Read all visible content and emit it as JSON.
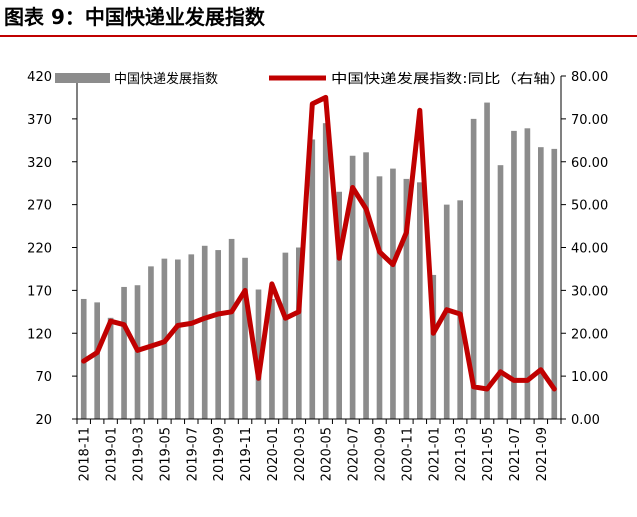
{
  "title": "图表 9：中国快递业发展指数",
  "colors": {
    "bar": "#8c8c8c",
    "line": "#c00000",
    "title_rule": "#c00000",
    "axis": "#000000"
  },
  "chart_data": {
    "type": "bar",
    "categories": [
      "2018-11",
      "2018-12",
      "2019-01",
      "2019-02",
      "2019-03",
      "2019-04",
      "2019-05",
      "2019-06",
      "2019-07",
      "2019-08",
      "2019-09",
      "2019-10",
      "2019-11",
      "2019-12",
      "2020-01",
      "2020-02",
      "2020-03",
      "2020-04",
      "2020-05",
      "2020-06",
      "2020-07",
      "2020-08",
      "2020-09",
      "2020-10",
      "2020-11",
      "2020-12",
      "2021-01",
      "2021-02",
      "2021-03",
      "2021-04",
      "2021-05",
      "2021-06",
      "2021-07",
      "2021-08",
      "2021-09",
      "2021-10"
    ],
    "tick_labels": [
      "2018-11",
      "2019-01",
      "2019-03",
      "2019-05",
      "2019-07",
      "2019-09",
      "2019-11",
      "2020-01",
      "2020-03",
      "2020-05",
      "2020-07",
      "2020-09",
      "2020-11",
      "2021-01",
      "2021-03",
      "2021-05",
      "2021-07",
      "2021-09"
    ],
    "series": [
      {
        "name": "中国快递发展指数",
        "type": "bar",
        "axis": "left",
        "values": [
          160,
          156,
          138,
          174,
          176,
          198,
          207,
          206,
          212,
          222,
          217,
          230,
          208,
          171,
          160,
          214,
          220,
          346,
          365,
          285,
          327,
          331,
          303,
          312,
          300,
          296,
          188,
          270,
          275,
          370,
          389,
          316,
          356,
          359,
          337,
          335
        ]
      },
      {
        "name": "中国快递发展指数:同比（右轴）",
        "type": "line",
        "axis": "right",
        "values": [
          13.5,
          15.5,
          22.8,
          22.0,
          16.0,
          17.0,
          18.0,
          21.8,
          22.3,
          23.5,
          24.5,
          25.0,
          30.0,
          9.5,
          31.5,
          23.5,
          25.0,
          73.5,
          75.0,
          37.5,
          54.0,
          49.0,
          39.0,
          36.0,
          43.5,
          72.0,
          20.0,
          25.5,
          24.5,
          7.5,
          7.0,
          11.0,
          9.0,
          9.0,
          11.5,
          7.0
        ]
      }
    ],
    "y_left": {
      "lim": [
        20,
        420
      ],
      "ticks": [
        20,
        70,
        120,
        170,
        220,
        270,
        320,
        370,
        420
      ]
    },
    "y_right": {
      "lim": [
        0,
        80
      ],
      "ticks": [
        "0.00",
        "10.00",
        "20.00",
        "30.00",
        "40.00",
        "50.00",
        "60.00",
        "70.00",
        "80.00"
      ]
    },
    "grid": false,
    "legend": "top"
  }
}
